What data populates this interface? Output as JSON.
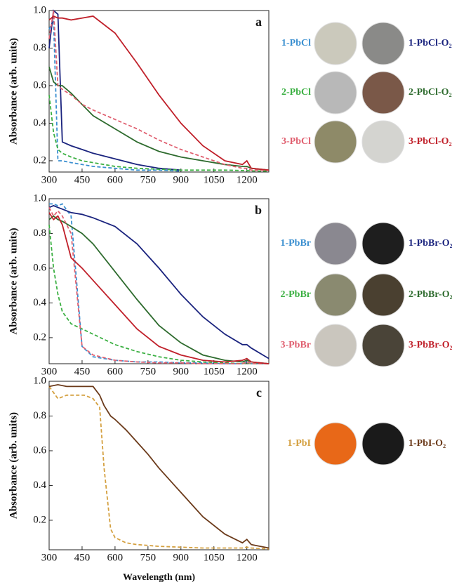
{
  "chart_data": [
    {
      "type": "line",
      "annotation": "a",
      "ylabel": "Absorbance (arb. units)",
      "x": [
        300,
        320,
        340,
        360,
        400,
        450,
        500,
        600,
        700,
        800,
        900,
        1000,
        1100,
        1180,
        1200,
        1220,
        1300
      ],
      "xlim": [
        300,
        1300
      ],
      "ylim": [
        0.14,
        1.0
      ],
      "xticks": [
        300,
        450,
        600,
        750,
        900,
        1050,
        1200
      ],
      "yticks": [
        0.2,
        0.4,
        0.6,
        0.8,
        {
          "value": 1,
          "label": "1.0"
        }
      ],
      "series": [
        {
          "name": "1-PbCl",
          "color": "#3a8fd0",
          "style": "dashed",
          "values": [
            0.9,
            0.95,
            0.2,
            0.2,
            0.19,
            0.18,
            0.17,
            0.16,
            0.15,
            0.15,
            0.145,
            null,
            null,
            null,
            null,
            null,
            null
          ]
        },
        {
          "name": "1-PbCl-O₂",
          "color": "#1a237e",
          "style": "solid",
          "values": [
            0.8,
            1.0,
            0.98,
            0.3,
            0.28,
            0.26,
            0.24,
            0.21,
            0.18,
            0.16,
            0.15,
            null,
            null,
            null,
            null,
            null,
            null
          ]
        },
        {
          "name": "2-PbCl",
          "color": "#3cb043",
          "style": "dashed",
          "values": [
            0.55,
            0.35,
            0.26,
            0.24,
            0.22,
            0.2,
            0.19,
            0.17,
            0.16,
            0.155,
            0.15,
            0.15,
            0.15,
            0.148,
            0.148,
            0.146,
            0.145
          ]
        },
        {
          "name": "2-PbCl-O₂",
          "color": "#2e6b2e",
          "style": "solid",
          "values": [
            0.7,
            0.62,
            0.6,
            0.6,
            0.56,
            0.5,
            0.44,
            0.37,
            0.3,
            0.25,
            0.22,
            0.2,
            0.18,
            0.17,
            0.17,
            0.16,
            0.15
          ]
        },
        {
          "name": "3-PbCl",
          "color": "#e06070",
          "style": "dashed",
          "values": [
            0.85,
            1.0,
            0.6,
            0.58,
            0.55,
            0.5,
            0.47,
            0.42,
            0.37,
            0.31,
            0.26,
            0.22,
            0.18,
            0.16,
            0.16,
            0.15,
            0.15
          ]
        },
        {
          "name": "3-PbCl-O₂",
          "color": "#c0202a",
          "style": "solid",
          "values": [
            0.95,
            0.97,
            0.96,
            0.96,
            0.95,
            0.96,
            0.97,
            0.88,
            0.72,
            0.55,
            0.4,
            0.28,
            0.2,
            0.18,
            0.2,
            0.16,
            0.15
          ]
        }
      ]
    },
    {
      "type": "line",
      "annotation": "b",
      "ylabel": "Absorbance (arb. units)",
      "x": [
        300,
        320,
        340,
        360,
        400,
        450,
        500,
        600,
        700,
        800,
        900,
        1000,
        1100,
        1180,
        1200,
        1220,
        1300
      ],
      "xlim": [
        300,
        1300
      ],
      "ylim": [
        0.05,
        1.0
      ],
      "xticks": [
        300,
        450,
        600,
        750,
        900,
        1050,
        1200
      ],
      "yticks": [
        0.2,
        0.4,
        0.6,
        0.8,
        {
          "value": 1,
          "label": "1.0"
        }
      ],
      "series": [
        {
          "name": "1-PbBr",
          "color": "#3a8fd0",
          "style": "dashed",
          "values": [
            0.97,
            0.97,
            0.96,
            0.97,
            0.9,
            0.15,
            0.09,
            0.07,
            0.06,
            0.06,
            0.055,
            0.055,
            0.05,
            0.05,
            0.06,
            0.05,
            0.05
          ]
        },
        {
          "name": "1-PbBr-O₂",
          "color": "#1a237e",
          "style": "solid",
          "values": [
            0.95,
            0.96,
            0.95,
            0.94,
            0.92,
            0.91,
            0.89,
            0.84,
            0.74,
            0.6,
            0.45,
            0.32,
            0.22,
            0.16,
            0.16,
            0.14,
            0.08
          ]
        },
        {
          "name": "2-PbBr",
          "color": "#3cb043",
          "style": "dashed",
          "values": [
            0.85,
            0.6,
            0.45,
            0.35,
            0.28,
            0.25,
            0.22,
            0.16,
            0.12,
            0.09,
            0.07,
            0.06,
            0.055,
            0.05,
            0.055,
            0.05,
            0.05
          ]
        },
        {
          "name": "2-PbBr-O₂",
          "color": "#2e6b2e",
          "style": "solid",
          "values": [
            0.88,
            0.9,
            0.88,
            0.87,
            0.84,
            0.8,
            0.74,
            0.58,
            0.42,
            0.27,
            0.17,
            0.1,
            0.07,
            0.06,
            0.07,
            0.06,
            0.05
          ]
        },
        {
          "name": "3-PbBr",
          "color": "#e06070",
          "style": "dashed",
          "values": [
            0.95,
            0.9,
            0.93,
            0.9,
            0.8,
            0.15,
            0.1,
            0.07,
            0.06,
            0.055,
            0.055,
            0.05,
            0.05,
            0.05,
            0.06,
            0.05,
            0.05
          ]
        },
        {
          "name": "3-PbBr-O₂",
          "color": "#c0202a",
          "style": "solid",
          "values": [
            0.92,
            0.88,
            0.9,
            0.85,
            0.66,
            0.6,
            0.53,
            0.39,
            0.25,
            0.15,
            0.1,
            0.07,
            0.06,
            0.07,
            0.08,
            0.06,
            0.05
          ]
        }
      ]
    },
    {
      "type": "line",
      "annotation": "c",
      "ylabel": "Absorbance (arb. units)",
      "xlabel": "Wavelength (nm)",
      "x": [
        300,
        340,
        380,
        420,
        460,
        500,
        530,
        550,
        580,
        600,
        650,
        700,
        750,
        800,
        900,
        1000,
        1100,
        1180,
        1200,
        1220,
        1300
      ],
      "xlim": [
        300,
        1300
      ],
      "ylim": [
        0.03,
        1.0
      ],
      "xticks": [
        300,
        450,
        600,
        750,
        900,
        1050,
        1200
      ],
      "yticks": [
        0.2,
        0.4,
        0.6,
        0.8,
        {
          "value": 1,
          "label": "1.0"
        }
      ],
      "series": [
        {
          "name": "1-PbI",
          "color": "#d4a040",
          "style": "dashed",
          "values": [
            0.97,
            0.9,
            0.92,
            0.92,
            0.92,
            0.9,
            0.85,
            0.5,
            0.15,
            0.1,
            0.07,
            0.06,
            0.055,
            0.05,
            0.045,
            0.04,
            0.04,
            0.04,
            0.045,
            0.04,
            0.035
          ]
        },
        {
          "name": "1-PbI-O₂",
          "color": "#6b3a1a",
          "style": "solid",
          "values": [
            0.97,
            0.98,
            0.97,
            0.97,
            0.97,
            0.97,
            0.92,
            0.86,
            0.8,
            0.78,
            0.72,
            0.65,
            0.58,
            0.5,
            0.36,
            0.22,
            0.12,
            0.07,
            0.09,
            0.06,
            0.04
          ]
        }
      ]
    }
  ]
}
